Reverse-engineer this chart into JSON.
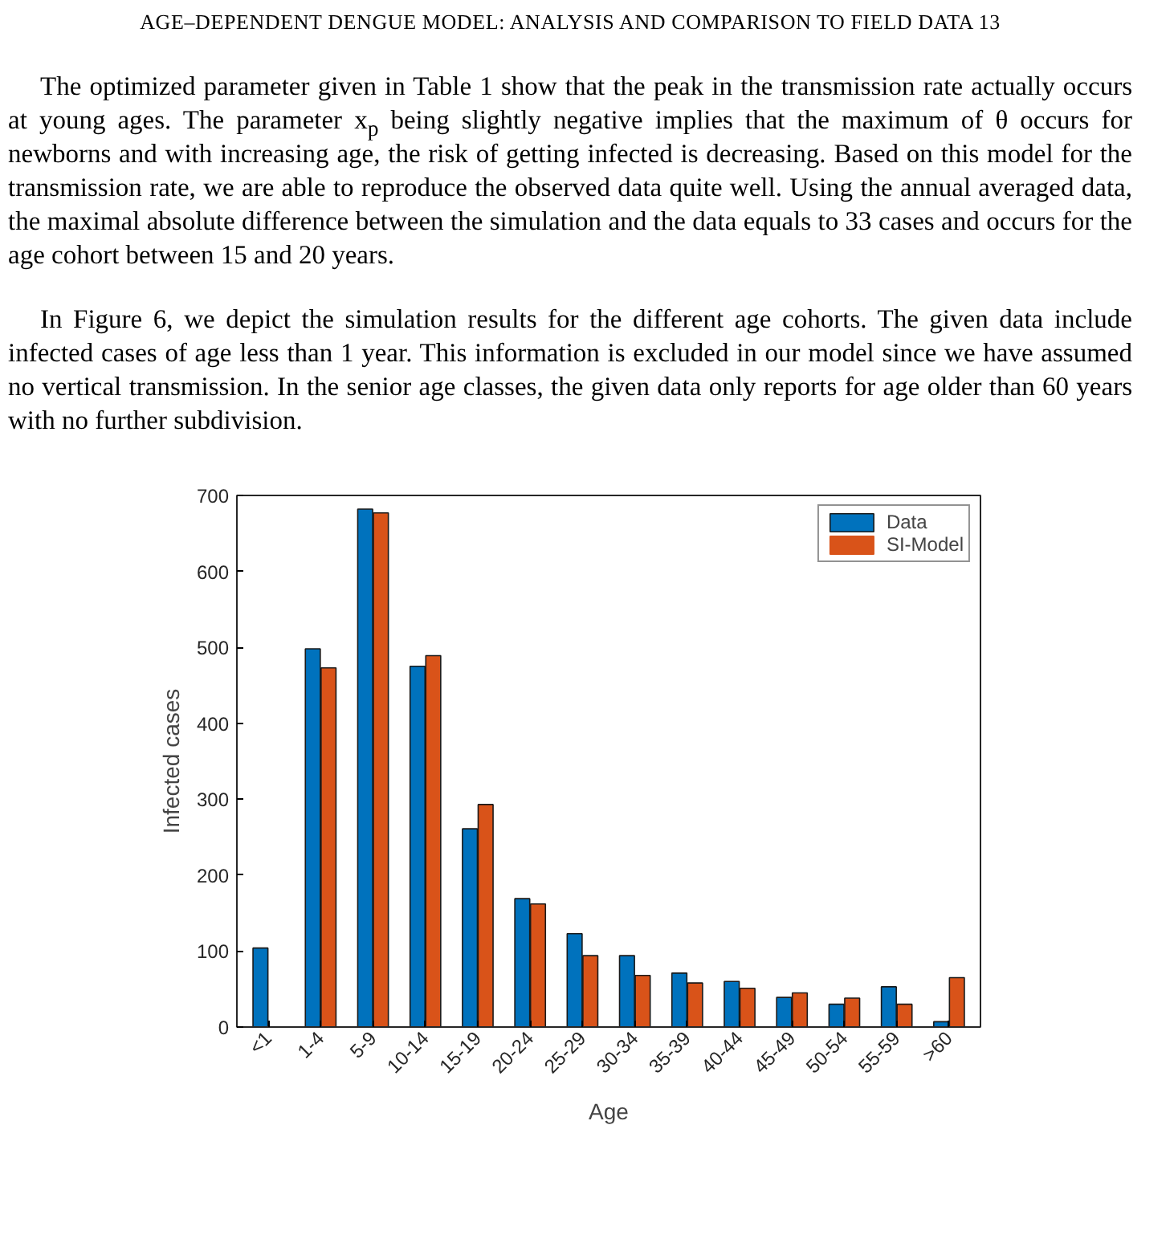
{
  "chart_data": {
    "type": "bar",
    "xlabel": "Age",
    "ylabel": "Infected cases",
    "categories": [
      "<1",
      "1-4",
      "5-9",
      "10-14",
      "15-19",
      "20-24",
      "25-29",
      "30-34",
      "35-39",
      "40-44",
      "45-49",
      "50-54",
      "55-59",
      ">60"
    ],
    "series": [
      {
        "name": "Data",
        "color": "#0072bd",
        "values": [
          104,
          498,
          682,
          475,
          261,
          169,
          123,
          94,
          71,
          60,
          39,
          30,
          53,
          7
        ]
      },
      {
        "name": "SI-Model",
        "color": "#d95319",
        "values": [
          0,
          473,
          677,
          489,
          293,
          162,
          94,
          68,
          58,
          51,
          45,
          38,
          30,
          65
        ]
      }
    ],
    "ylim": [
      0,
      700
    ],
    "yticks": [
      0,
      100,
      200,
      300,
      400,
      500,
      600,
      700
    ],
    "legend": "top right",
    "annotations": [
      "AGE–DEPENDENT DENGUE MODEL: ANALYSIS AND COMPARISON TO FIELD DATA 13",
      "The optimized parameter given in Table 1 show that the peak in the transmission rate actually occurs at young ages. The parameter x$_{p}$ being slightly negative implies that the maximum of θ occurs for newborns and with increasing age, the risk of getting infected is decreasing. Based on this model for the transmission rate, we are able to reproduce the observed data quite well. Using the annual averaged data, the maximal absolute difference between the simulation and the data equals to 33 cases and occurs for the age cohort between 15 and 20 years.",
      "In Figure 6, we depict the simulation results for the different age cohorts. The given data include infected cases of age less than 1 year. This information is excluded in our model since we have assumed no vertical transmission. In the senior age classes, the given data only reports for age older than 60 years with no further subdivision."
    ]
  }
}
